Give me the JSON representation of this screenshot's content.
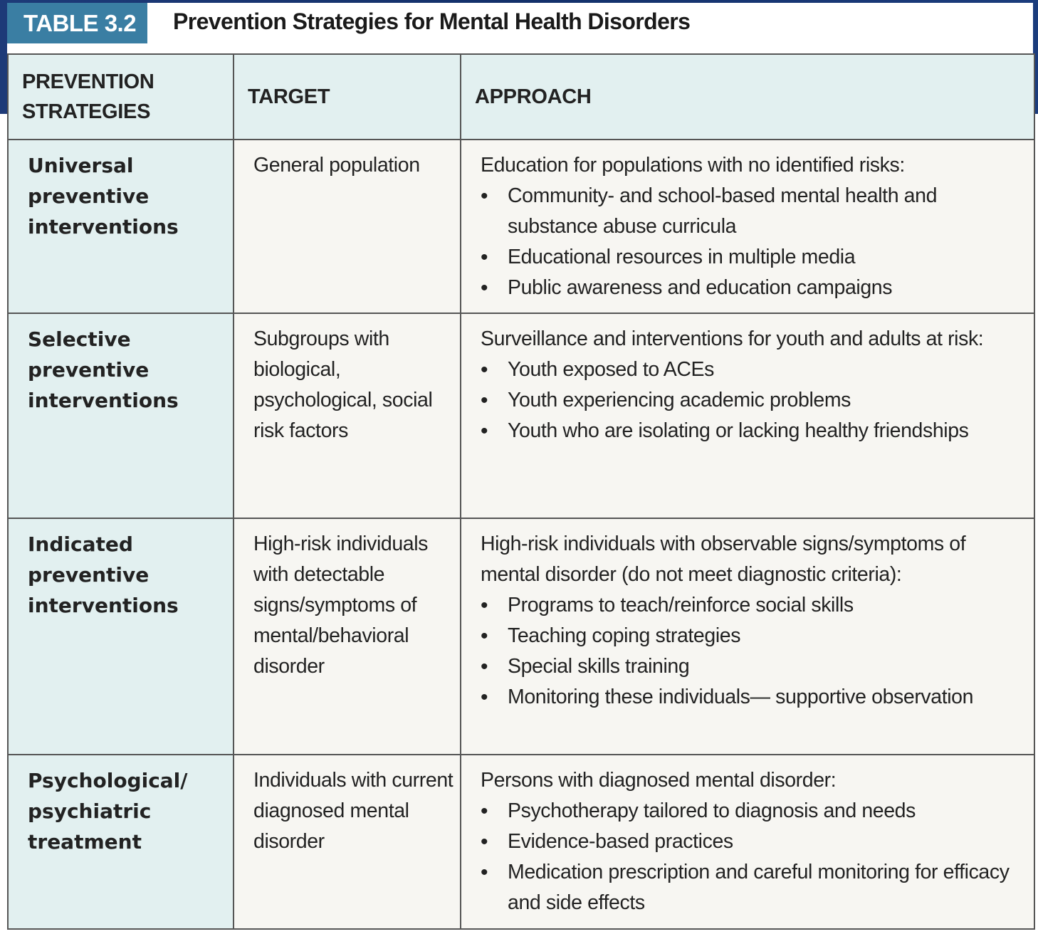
{
  "table_label": "TABLE 3.2",
  "title": "Prevention Strategies for Mental Health Disorders",
  "headers": [
    "PREVENTION STRATEGIES",
    "TARGET",
    "APPROACH"
  ],
  "rows": [
    {
      "strategy": "Universal preventive interventions",
      "target": "General population",
      "approach_intro": "Education for populations with no identified risks:",
      "approach_items": [
        "Community- and school-based mental health and substance abuse curricula",
        "Educational resources in multiple media",
        "Public awareness and education campaigns"
      ]
    },
    {
      "strategy": "Selective preventive interventions",
      "target": "Subgroups with biological, psychological, social risk factors",
      "approach_intro": "Surveillance and interventions for youth and adults at risk:",
      "approach_items": [
        "Youth exposed to ACEs",
        "Youth experiencing academic problems",
        "Youth who are isolating or lacking healthy friendships"
      ]
    },
    {
      "strategy": "Indicated preventive interventions",
      "target": "High-risk individuals with detectable signs/symptoms of mental/behavioral disorder",
      "approach_intro": "High-risk individuals with observable signs/symptoms of mental disorder (do not meet diagnostic criteria):",
      "approach_items": [
        "Programs to teach/reinforce social skills",
        "Teaching coping strategies",
        "Special skills training",
        "Monitoring these individuals— supportive observation"
      ]
    },
    {
      "strategy": "Psychological/ psychiatric treatment",
      "target": "Individuals with current diagnosed mental disorder",
      "approach_intro": "Persons with diagnosed mental disorder:",
      "approach_items": [
        "Psychotherapy tailored to diagnosis and needs",
        "Evidence-based practices",
        "Medication prescription and careful monitoring for efficacy and side effects"
      ]
    }
  ],
  "colors": {
    "label_bg": "#3a7ea3",
    "header_bg": "#e2f0f0",
    "cell_bg": "#f7f6f2",
    "band": "#13306a"
  }
}
